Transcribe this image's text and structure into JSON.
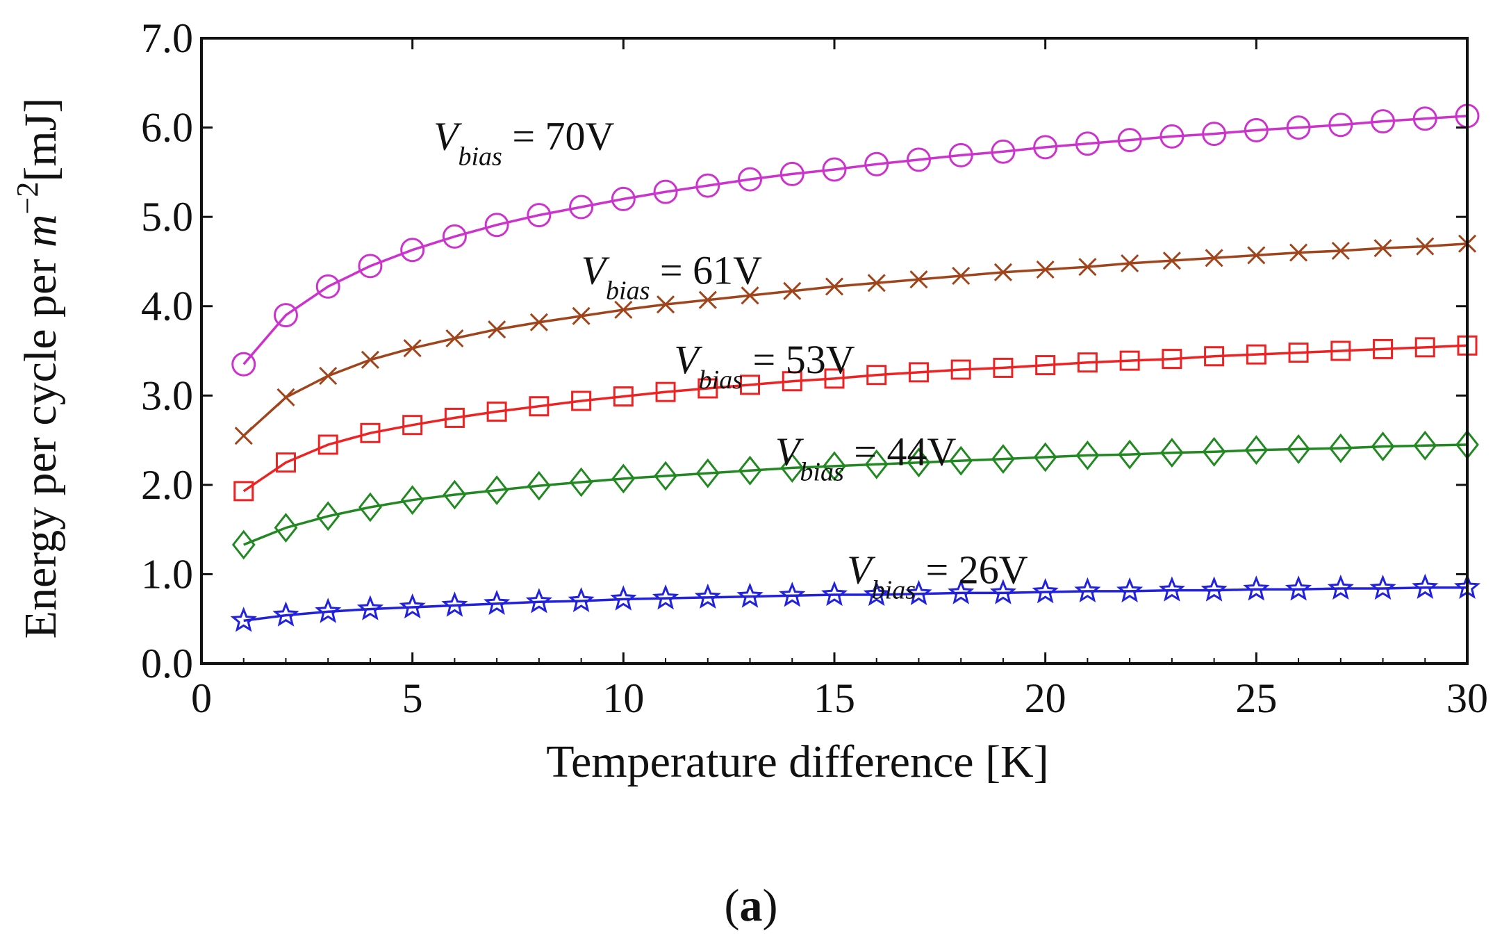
{
  "chart_data": {
    "type": "line",
    "title": "",
    "panel_label": "a",
    "xlabel": "Temperature difference [K]",
    "ylabel": {
      "prefix": "Energy per cycle per ",
      "var": "m",
      "exp": "−2",
      "suffix": "[mJ]"
    },
    "xlim": [
      0,
      30
    ],
    "ylim": [
      0,
      7
    ],
    "x_ticks": [
      {
        "value": 0,
        "label": "0"
      },
      {
        "value": 5,
        "label": "5"
      },
      {
        "value": 10,
        "label": "10"
      },
      {
        "value": 15,
        "label": "15"
      },
      {
        "value": 20,
        "label": "20"
      },
      {
        "value": 25,
        "label": "25"
      },
      {
        "value": 30,
        "label": "30"
      }
    ],
    "y_ticks": [
      {
        "value": 0,
        "label": "0.0"
      },
      {
        "value": 1,
        "label": "1.0"
      },
      {
        "value": 2,
        "label": "2.0"
      },
      {
        "value": 3,
        "label": "3.0"
      },
      {
        "value": 4,
        "label": "4.0"
      },
      {
        "value": 5,
        "label": "5.0"
      },
      {
        "value": 6,
        "label": "6.0"
      },
      {
        "value": 7,
        "label": "7.0"
      }
    ],
    "grid": false,
    "legend": "inline-annotations",
    "x": [
      1,
      2,
      3,
      4,
      5,
      6,
      7,
      8,
      9,
      10,
      11,
      12,
      13,
      14,
      15,
      16,
      17,
      18,
      19,
      20,
      21,
      22,
      23,
      24,
      25,
      26,
      27,
      28,
      29,
      30
    ],
    "series": [
      {
        "marker": "circle",
        "color": "#cc33cc",
        "label": {
          "var": "V",
          "sub": "bias",
          "eq": " = 70V",
          "x": 5.5,
          "y": 5.75
        },
        "values": [
          3.35,
          3.9,
          4.22,
          4.45,
          4.63,
          4.78,
          4.91,
          5.02,
          5.11,
          5.2,
          5.28,
          5.35,
          5.42,
          5.48,
          5.53,
          5.59,
          5.64,
          5.69,
          5.73,
          5.78,
          5.82,
          5.86,
          5.9,
          5.93,
          5.97,
          6.0,
          6.03,
          6.07,
          6.1,
          6.13
        ]
      },
      {
        "marker": "x",
        "color": "#a0441c",
        "label": {
          "var": "V",
          "sub": "bias",
          "eq": " = 61V",
          "x": 9.0,
          "y": 4.25
        },
        "values": [
          2.55,
          2.98,
          3.22,
          3.4,
          3.53,
          3.64,
          3.74,
          3.82,
          3.89,
          3.96,
          4.02,
          4.07,
          4.12,
          4.17,
          4.22,
          4.26,
          4.3,
          4.34,
          4.38,
          4.41,
          4.44,
          4.48,
          4.51,
          4.54,
          4.57,
          4.6,
          4.62,
          4.65,
          4.67,
          4.7
        ]
      },
      {
        "marker": "square",
        "color": "#ee2222",
        "label": {
          "var": "V",
          "sub": "bias",
          "eq": " = 53V",
          "x": 11.2,
          "y": 3.25
        },
        "values": [
          1.93,
          2.25,
          2.45,
          2.58,
          2.67,
          2.75,
          2.82,
          2.88,
          2.94,
          2.99,
          3.04,
          3.08,
          3.12,
          3.16,
          3.19,
          3.23,
          3.26,
          3.29,
          3.31,
          3.34,
          3.37,
          3.39,
          3.41,
          3.44,
          3.46,
          3.48,
          3.5,
          3.52,
          3.54,
          3.56
        ]
      },
      {
        "marker": "diamond",
        "color": "#228822",
        "label": {
          "var": "V",
          "sub": "bias",
          "eq": " = 44V",
          "x": 13.6,
          "y": 2.22
        },
        "values": [
          1.33,
          1.52,
          1.65,
          1.75,
          1.83,
          1.89,
          1.94,
          1.99,
          2.03,
          2.07,
          2.1,
          2.13,
          2.16,
          2.19,
          2.21,
          2.23,
          2.25,
          2.27,
          2.29,
          2.31,
          2.33,
          2.34,
          2.36,
          2.37,
          2.39,
          2.4,
          2.41,
          2.43,
          2.44,
          2.45
        ]
      },
      {
        "marker": "star",
        "color": "#2222dd",
        "label": {
          "var": "V",
          "sub": "bias",
          "eq": " = 26V",
          "x": 15.3,
          "y": 0.9
        },
        "values": [
          0.48,
          0.54,
          0.58,
          0.61,
          0.63,
          0.65,
          0.67,
          0.69,
          0.7,
          0.72,
          0.73,
          0.74,
          0.75,
          0.76,
          0.77,
          0.77,
          0.78,
          0.79,
          0.79,
          0.8,
          0.81,
          0.81,
          0.82,
          0.82,
          0.83,
          0.83,
          0.84,
          0.84,
          0.85,
          0.85
        ]
      }
    ]
  }
}
